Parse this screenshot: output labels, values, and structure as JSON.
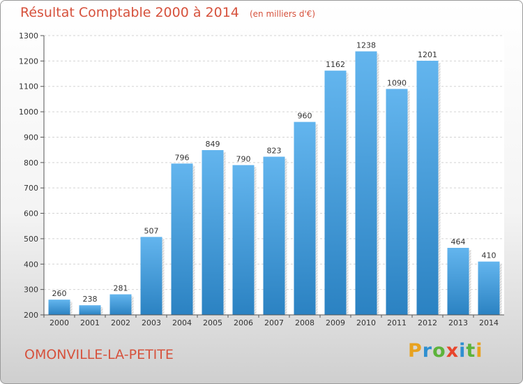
{
  "header": {
    "title": "Résultat Comptable 2000 à 2014",
    "subtitle": "(en milliers d'€)"
  },
  "footer": {
    "location": "OMONVILLE-LA-PETITE",
    "brand_letters": [
      {
        "char": "P",
        "color": "#e8a21f"
      },
      {
        "char": "r",
        "color": "#2e8fd0"
      },
      {
        "char": "o",
        "color": "#5db33b"
      },
      {
        "char": "x",
        "color": "#e8452c"
      },
      {
        "char": "i",
        "color": "#2e8fd0"
      },
      {
        "char": "t",
        "color": "#5db33b"
      },
      {
        "char": "i",
        "color": "#e8a21f"
      }
    ]
  },
  "colors": {
    "bar_top": "#63b5ee",
    "bar_bottom": "#2b82c2",
    "title_red": "#d6513c"
  },
  "chart_data": {
    "type": "bar",
    "title": "Résultat Comptable 2000 à 2014",
    "subtitle": "(en milliers d'€)",
    "categories": [
      "2000",
      "2001",
      "2002",
      "2003",
      "2004",
      "2005",
      "2006",
      "2007",
      "2008",
      "2009",
      "2010",
      "2011",
      "2012",
      "2013",
      "2014"
    ],
    "values": [
      260,
      238,
      281,
      507,
      796,
      849,
      790,
      823,
      960,
      1162,
      1238,
      1090,
      1201,
      464,
      410
    ],
    "ylim": [
      200,
      1300
    ],
    "yticks": [
      200,
      300,
      400,
      500,
      600,
      700,
      800,
      900,
      1000,
      1100,
      1200,
      1300
    ],
    "grid": true,
    "data_labels": true
  }
}
